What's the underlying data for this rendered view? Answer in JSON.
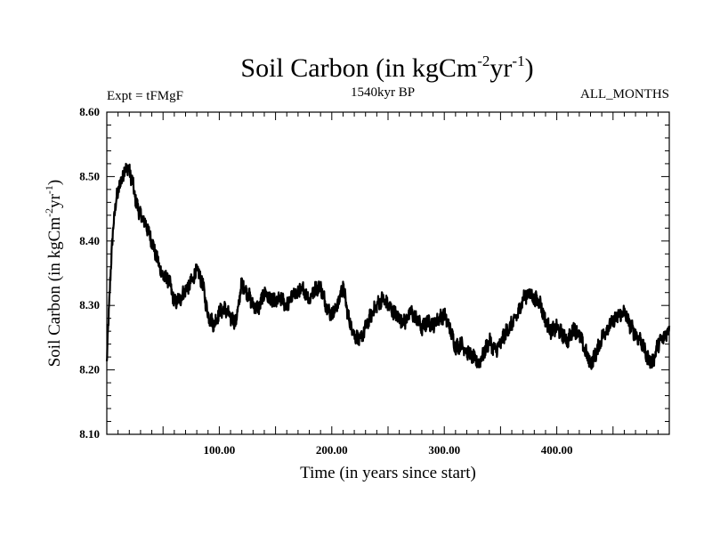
{
  "chart_data": {
    "type": "line",
    "title": {
      "main": "Soil Carbon (in kgCm",
      "sup1": "-2",
      "mid": "yr",
      "sup2": "-1",
      "end": ")"
    },
    "left_label": "Expt = tFMgF",
    "center_label": "1540kyr BP",
    "right_label": "ALL_MONTHS",
    "xlabel": "Time (in years since start)",
    "ylabel": {
      "main": "Soil Carbon (in kgCm",
      "sup1": "-2",
      "mid": "yr",
      "sup2": "-1",
      "end": ")"
    },
    "xlim": [
      0,
      500
    ],
    "ylim": [
      8.1,
      8.6
    ],
    "x_ticks": [
      {
        "value": 100,
        "label": "100.00"
      },
      {
        "value": 200,
        "label": "200.00"
      },
      {
        "value": 300,
        "label": "300.00"
      },
      {
        "value": 400,
        "label": "400.00"
      }
    ],
    "y_ticks": [
      {
        "value": 8.1,
        "label": "8.10"
      },
      {
        "value": 8.2,
        "label": "8.20"
      },
      {
        "value": 8.3,
        "label": "8.30"
      },
      {
        "value": 8.4,
        "label": "8.40"
      },
      {
        "value": 8.5,
        "label": "8.50"
      },
      {
        "value": 8.6,
        "label": "8.60"
      }
    ],
    "series": [
      {
        "name": "Soil Carbon",
        "color": "#000000",
        "x": [
          0,
          3,
          6,
          9,
          12,
          15,
          17,
          20,
          23,
          26,
          30,
          35,
          40,
          45,
          50,
          55,
          60,
          65,
          70,
          75,
          80,
          85,
          90,
          95,
          100,
          105,
          110,
          115,
          120,
          125,
          130,
          135,
          140,
          145,
          150,
          155,
          160,
          165,
          170,
          175,
          180,
          185,
          190,
          195,
          200,
          205,
          210,
          215,
          220,
          225,
          230,
          235,
          240,
          245,
          250,
          255,
          260,
          265,
          270,
          275,
          280,
          285,
          290,
          295,
          300,
          305,
          310,
          315,
          320,
          325,
          330,
          335,
          340,
          345,
          350,
          355,
          360,
          365,
          370,
          375,
          380,
          385,
          390,
          395,
          400,
          405,
          410,
          415,
          420,
          425,
          430,
          435,
          440,
          445,
          450,
          455,
          460,
          465,
          470,
          475,
          480,
          485,
          490,
          495,
          500
        ],
        "y": [
          8.21,
          8.34,
          8.43,
          8.47,
          8.49,
          8.505,
          8.515,
          8.51,
          8.49,
          8.46,
          8.44,
          8.425,
          8.4,
          8.37,
          8.345,
          8.34,
          8.305,
          8.31,
          8.325,
          8.335,
          8.355,
          8.335,
          8.285,
          8.27,
          8.29,
          8.295,
          8.28,
          8.275,
          8.335,
          8.32,
          8.3,
          8.295,
          8.32,
          8.31,
          8.305,
          8.31,
          8.3,
          8.315,
          8.32,
          8.325,
          8.31,
          8.325,
          8.33,
          8.3,
          8.285,
          8.3,
          8.33,
          8.28,
          8.255,
          8.245,
          8.265,
          8.285,
          8.3,
          8.31,
          8.3,
          8.29,
          8.28,
          8.275,
          8.29,
          8.28,
          8.265,
          8.275,
          8.27,
          8.28,
          8.285,
          8.265,
          8.235,
          8.24,
          8.23,
          8.22,
          8.21,
          8.225,
          8.245,
          8.23,
          8.24,
          8.26,
          8.27,
          8.285,
          8.31,
          8.32,
          8.31,
          8.305,
          8.275,
          8.26,
          8.265,
          8.255,
          8.245,
          8.265,
          8.255,
          8.23,
          8.21,
          8.225,
          8.25,
          8.265,
          8.275,
          8.285,
          8.29,
          8.27,
          8.255,
          8.245,
          8.22,
          8.21,
          8.24,
          8.25,
          8.265
        ]
      }
    ]
  }
}
